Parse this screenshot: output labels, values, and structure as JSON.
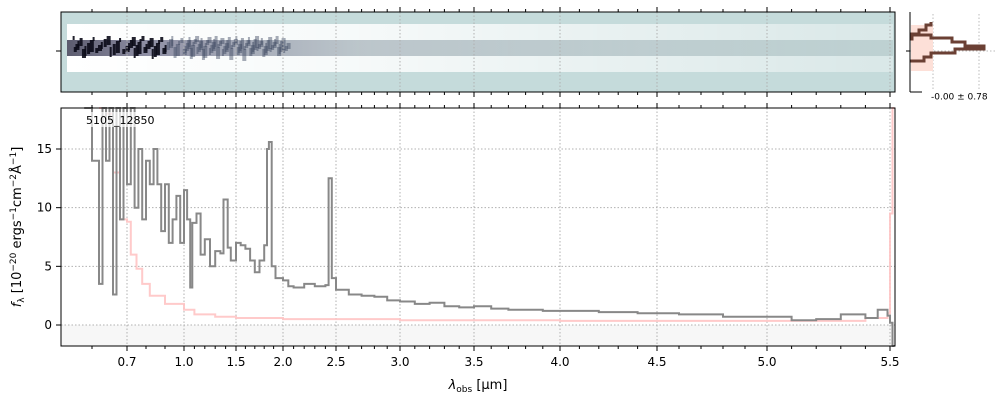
{
  "chart_data": {
    "type": "line",
    "label": "5105_12850",
    "xlabel": {
      "main": "λ",
      "sub": "obs",
      "unit": " [μm]"
    },
    "ylabel": {
      "f": "f",
      "sub": "λ",
      "p1": " [10",
      "s1": "−20",
      "p2": " ergs",
      "s2": "−1",
      "p3": "cm",
      "s3": "−2",
      "p4": "Å",
      "s4": "−1",
      "p5": "]"
    },
    "xticks": [
      0.7,
      1.0,
      1.5,
      2.0,
      2.5,
      3.0,
      3.5,
      4.0,
      4.5,
      5.0,
      5.5
    ],
    "xtick_labels": [
      "0.7",
      "1.0",
      "1.5",
      "2.0",
      "2.5",
      "3.0",
      "3.5",
      "4.0",
      "4.5",
      "5.0",
      "5.5"
    ],
    "yticks": [
      0,
      5,
      10,
      15
    ],
    "ytick_labels": [
      "0",
      "5",
      "10",
      "15"
    ],
    "xlim": [
      0.52,
      5.52
    ],
    "ylim": [
      -1.8,
      18.5
    ],
    "grid": true,
    "colors": {
      "flux": "#888888",
      "error": "#ffc4c4",
      "negative_band": "#f7f7f7",
      "strip_bg": "#c5dbdb",
      "hist_line": "#6b4034",
      "hist_fill": "#fde0d8"
    },
    "series": [
      {
        "role": "flux",
        "x": [
          0.58,
          0.6,
          0.62,
          0.63,
          0.64,
          0.65,
          0.66,
          0.67,
          0.68,
          0.69,
          0.7,
          0.72,
          0.74,
          0.76,
          0.78,
          0.8,
          0.82,
          0.84,
          0.86,
          0.88,
          0.9,
          0.92,
          0.94,
          0.96,
          0.98,
          1.0,
          1.03,
          1.06,
          1.08,
          1.12,
          1.16,
          1.2,
          1.25,
          1.3,
          1.35,
          1.38,
          1.42,
          1.45,
          1.5,
          1.55,
          1.6,
          1.65,
          1.7,
          1.75,
          1.8,
          1.83,
          1.85,
          1.88,
          1.92,
          2.0,
          2.05,
          2.1,
          2.2,
          2.3,
          2.4,
          2.43,
          2.46,
          2.5,
          2.6,
          2.7,
          2.8,
          2.9,
          3.0,
          3.1,
          3.2,
          3.3,
          3.4,
          3.5,
          3.6,
          3.7,
          3.8,
          3.9,
          4.0,
          4.2,
          4.4,
          4.6,
          4.8,
          5.0,
          5.1,
          5.2,
          5.3,
          5.4,
          5.45,
          5.49,
          5.5,
          5.51
        ],
        "y": [
          18.5,
          14,
          3.5,
          18.5,
          14,
          18.5,
          2.6,
          18.5,
          9,
          18.5,
          12,
          18.5,
          10,
          15,
          9,
          14,
          12,
          15,
          12,
          8,
          12,
          7,
          9,
          11,
          7,
          11.5,
          9,
          3.2,
          8.7,
          9.5,
          6,
          7.3,
          5,
          6.3,
          6.1,
          10.7,
          6.6,
          5.5,
          7,
          6.8,
          6.5,
          5.5,
          4.5,
          5.5,
          6.8,
          15,
          15.6,
          5,
          4,
          3.8,
          3.3,
          3.2,
          3.5,
          3.3,
          3.4,
          12.5,
          4,
          3,
          2.6,
          2.5,
          2.4,
          2.1,
          2.0,
          1.8,
          1.9,
          1.6,
          1.5,
          1.6,
          1.4,
          1.3,
          1.3,
          1.2,
          1.2,
          1.1,
          1.0,
          0.9,
          0.7,
          0.7,
          0.4,
          0.5,
          0.9,
          0.6,
          1.3,
          0.8,
          0.2,
          -1.8
        ]
      },
      {
        "role": "error",
        "x": [
          0.62,
          0.64,
          0.66,
          0.68,
          0.7,
          0.72,
          0.75,
          0.78,
          0.82,
          0.9,
          1.0,
          1.1,
          1.3,
          1.5,
          2.0,
          3.0,
          4.0,
          5.0,
          5.4,
          5.49,
          5.5,
          5.51
        ],
        "y": [
          18.5,
          18,
          13,
          9,
          8.8,
          6,
          4.8,
          3.5,
          2.5,
          1.8,
          1.3,
          0.9,
          0.7,
          0.6,
          0.5,
          0.4,
          0.35,
          0.35,
          0.6,
          1.0,
          9.5,
          18.5
        ]
      }
    ],
    "hist_label": "-0.00 ± 0.78"
  }
}
